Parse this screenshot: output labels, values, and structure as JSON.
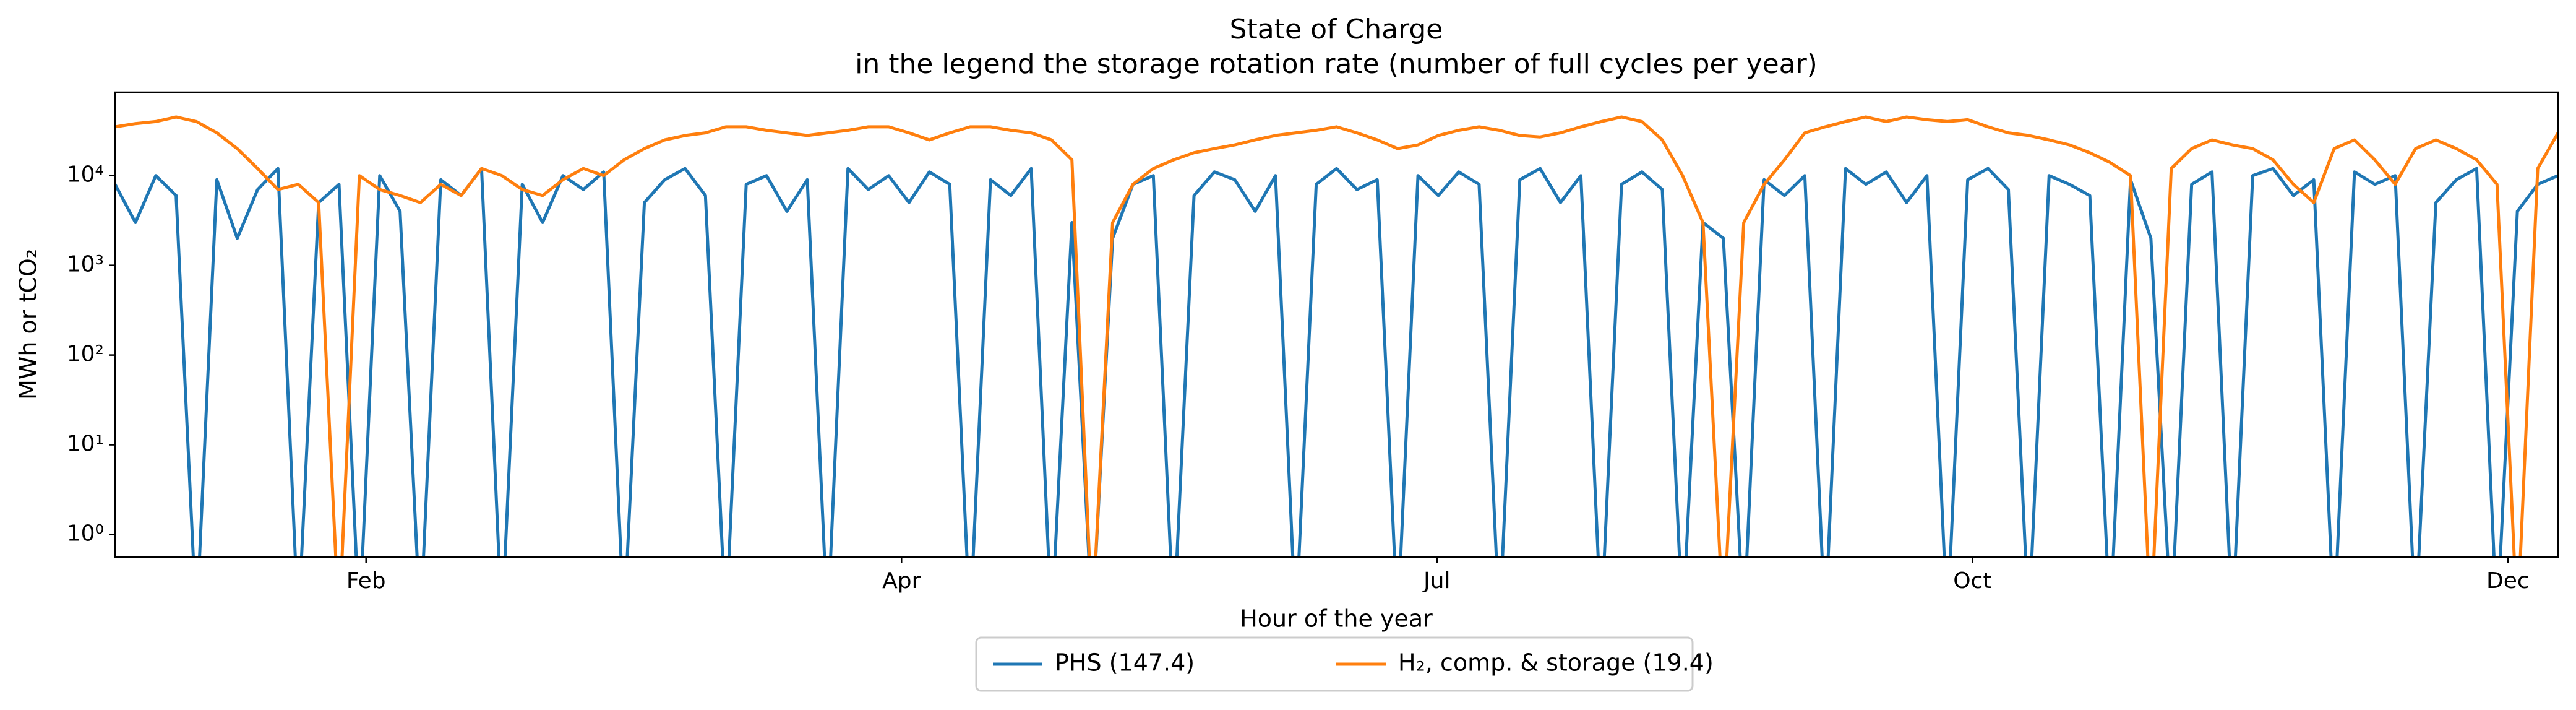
{
  "chart_data": {
    "type": "line",
    "title": "State of Charge",
    "subtitle": "in the legend the storage rotation rate (number of full cycles per year)",
    "x_label": "Hour of the year",
    "y_label": "MWh or tCO₂",
    "x": [
      0,
      73,
      146,
      219,
      292,
      365,
      438,
      511,
      584,
      657,
      730,
      803,
      876,
      949,
      1022,
      1095,
      1168,
      1241,
      1314,
      1387,
      1460,
      1533,
      1606,
      1679,
      1752,
      1825,
      1898,
      1971,
      2044,
      2117,
      2190,
      2263,
      2336,
      2409,
      2482,
      2555,
      2628,
      2701,
      2774,
      2847,
      2920,
      2993,
      3066,
      3139,
      3212,
      3285,
      3358,
      3431,
      3504,
      3577,
      3650,
      3723,
      3796,
      3869,
      3942,
      4015,
      4088,
      4161,
      4234,
      4307,
      4380,
      4453,
      4526,
      4599,
      4672,
      4745,
      4818,
      4891,
      4964,
      5037,
      5110,
      5183,
      5256,
      5329,
      5402,
      5475,
      5548,
      5621,
      5694,
      5767,
      5840,
      5913,
      5986,
      6059,
      6132,
      6205,
      6278,
      6351,
      6424,
      6497,
      6570,
      6643,
      6716,
      6789,
      6862,
      6935,
      7008,
      7081,
      7154,
      7227,
      7300,
      7373,
      7446,
      7519,
      7592,
      7665,
      7738,
      7811,
      7884,
      7957,
      8030,
      8103,
      8176,
      8249,
      8322,
      8395,
      8468,
      8541,
      8614,
      8687,
      8760
    ],
    "series": [
      {
        "name": "PHS (147.4)",
        "color": "#1f77b4",
        "values": [
          8000,
          3000,
          10000,
          6000,
          0.1,
          9000,
          2000,
          7000,
          12000,
          0.1,
          5000,
          8000,
          0.1,
          10000,
          4000,
          0.1,
          9000,
          6000,
          12000,
          0.1,
          8000,
          3000,
          10000,
          7000,
          11000,
          0.1,
          5000,
          9000,
          12000,
          6000,
          0.1,
          8000,
          10000,
          4000,
          9000,
          0.1,
          12000,
          7000,
          10000,
          5000,
          11000,
          8000,
          0.1,
          9000,
          6000,
          12000,
          0.1,
          3000,
          0.1,
          2000,
          8000,
          10000,
          0.1,
          6000,
          11000,
          9000,
          4000,
          10000,
          0.1,
          8000,
          12000,
          7000,
          9000,
          0.1,
          10000,
          6000,
          11000,
          8000,
          0.1,
          9000,
          12000,
          5000,
          10000,
          0.1,
          8000,
          11000,
          7000,
          0.1,
          3000,
          2000,
          0.1,
          9000,
          6000,
          10000,
          0.1,
          12000,
          8000,
          11000,
          5000,
          10000,
          0.1,
          9000,
          12000,
          7000,
          0.1,
          10000,
          8000,
          6000,
          0.1,
          9000,
          2000,
          0.1,
          8000,
          11000,
          0.1,
          10000,
          12000,
          6000,
          9000,
          0.1,
          11000,
          8000,
          10000,
          0.1,
          5000,
          9000,
          12000,
          0.1,
          4000,
          8000,
          10000
        ]
      },
      {
        "name": "H₂, comp. & storage (19.4)",
        "color": "#ff7f0e",
        "values": [
          35000,
          38000,
          40000,
          45000,
          40000,
          30000,
          20000,
          12000,
          7000,
          8000,
          5000,
          0.1,
          10000,
          7000,
          6000,
          5000,
          8000,
          6000,
          12000,
          10000,
          7000,
          6000,
          9000,
          12000,
          10000,
          15000,
          20000,
          25000,
          28000,
          30000,
          35000,
          35000,
          32000,
          30000,
          28000,
          30000,
          32000,
          35000,
          35000,
          30000,
          25000,
          30000,
          35000,
          35000,
          32000,
          30000,
          25000,
          15000,
          0.1,
          3000,
          8000,
          12000,
          15000,
          18000,
          20000,
          22000,
          25000,
          28000,
          30000,
          32000,
          35000,
          30000,
          25000,
          20000,
          22000,
          28000,
          32000,
          35000,
          32000,
          28000,
          27000,
          30000,
          35000,
          40000,
          45000,
          40000,
          25000,
          10000,
          3000,
          0.1,
          3000,
          8000,
          15000,
          30000,
          35000,
          40000,
          45000,
          40000,
          45000,
          42000,
          40000,
          42000,
          35000,
          30000,
          28000,
          25000,
          22000,
          18000,
          14000,
          10000,
          0.1,
          12000,
          20000,
          25000,
          22000,
          20000,
          15000,
          8000,
          5000,
          20000,
          25000,
          15000,
          8000,
          20000,
          25000,
          20000,
          15000,
          8000,
          0.1,
          12000,
          30000
        ]
      }
    ],
    "xlim": [
      0,
      8760
    ],
    "xticks": [
      {
        "value": 900,
        "label": "Feb"
      },
      {
        "value": 2820,
        "label": "Apr"
      },
      {
        "value": 4740,
        "label": "Jul"
      },
      {
        "value": 6660,
        "label": "Oct"
      },
      {
        "value": 8580,
        "label": "Dec"
      }
    ],
    "ylim": [
      0.56,
      85000
    ],
    "yticks": [
      {
        "value": 1,
        "label": "10⁰"
      },
      {
        "value": 10,
        "label": "10¹"
      },
      {
        "value": 100,
        "label": "10²"
      },
      {
        "value": 1000,
        "label": "10³"
      },
      {
        "value": 10000,
        "label": "10⁴"
      }
    ],
    "log_y": true,
    "legend": "below"
  }
}
